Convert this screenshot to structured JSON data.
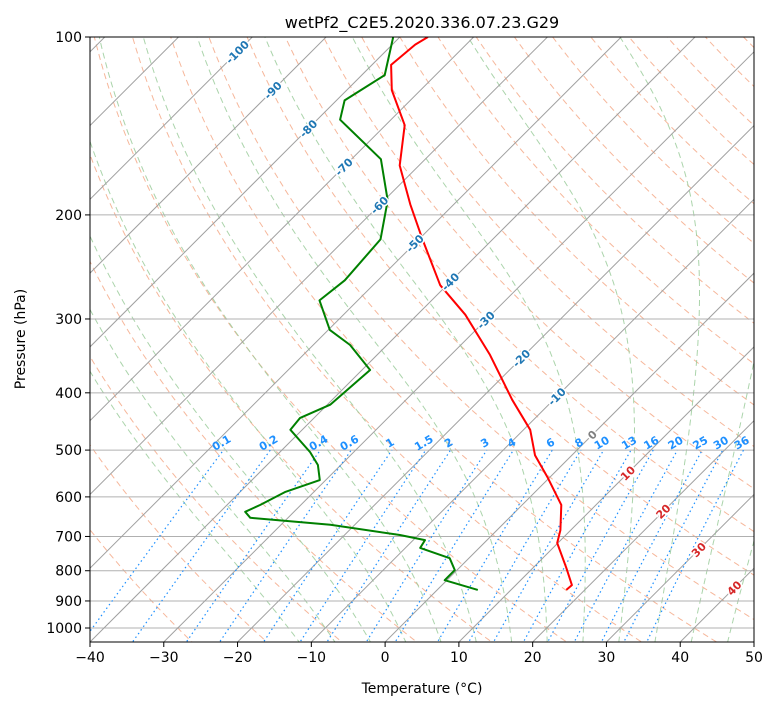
{
  "chart_data": {
    "type": "line",
    "subtype": "skew-t log-p",
    "title": "wetPf2_C2E5.2020.336.07.23.G29",
    "xlabel": "Temperature (°C)",
    "ylabel": "Pressure (hPa)",
    "xlim": [
      -40,
      50
    ],
    "ylim": [
      1050,
      100
    ],
    "xticks": [
      "−40",
      "−30",
      "−20",
      "−10",
      "0",
      "10",
      "20",
      "30",
      "40",
      "50"
    ],
    "xtick_values": [
      -40,
      -30,
      -20,
      -10,
      0,
      10,
      20,
      30,
      40,
      50
    ],
    "yticks": [
      "100",
      "200",
      "300",
      "400",
      "500",
      "600",
      "700",
      "800",
      "900",
      "1000"
    ],
    "ytick_values": [
      100,
      200,
      300,
      400,
      500,
      600,
      700,
      800,
      900,
      1000
    ],
    "grid": true,
    "series": [
      {
        "name": "Temperature",
        "color": "#ff0000",
        "p": [
          862,
          846,
          791,
          718,
          683,
          619,
          557,
          510,
          462,
          411,
          345,
          295,
          263,
          220,
          192,
          165,
          141,
          123,
          111.5,
          103,
          100
        ],
        "t": [
          17.5,
          17.6,
          14.5,
          9.9,
          8.6,
          5.3,
          -0.2,
          -5.0,
          -9.1,
          -15.6,
          -24.7,
          -33.5,
          -40.9,
          -49.5,
          -55.9,
          -62.6,
          -67.4,
          -73.9,
          -77.4,
          -76.9,
          -76.2
        ]
      },
      {
        "name": "Dewpoint",
        "color": "#008000",
        "p": [
          862,
          830,
          798,
          762,
          732,
          710,
          696,
          669,
          651,
          636,
          619,
          589,
          562,
          530,
          504,
          462,
          441,
          419,
          366,
          332,
          313,
          279,
          258,
          220,
          189,
          161,
          138,
          128,
          116,
          100
        ],
        "t": [
          5.5,
          -0.3,
          -0.3,
          -2.6,
          -8.0,
          -8.4,
          -12.5,
          -23.3,
          -35.1,
          -36.6,
          -35.5,
          -33.9,
          -30.8,
          -33.1,
          -35.9,
          -41.6,
          -41.9,
          -39.6,
          -38.9,
          -45.0,
          -49.8,
          -55.2,
          -54.5,
          -55.2,
          -59.5,
          -66.0,
          -76.9,
          -78.9,
          -76.9,
          -80.9
        ]
      }
    ],
    "isotherm_labels": [
      {
        "t": -100,
        "text": "-100",
        "color": "#1f77b4"
      },
      {
        "t": -90,
        "text": "-90",
        "color": "#1f77b4"
      },
      {
        "t": -80,
        "text": "-80",
        "color": "#1f77b4"
      },
      {
        "t": -70,
        "text": "-70",
        "color": "#1f77b4"
      },
      {
        "t": -60,
        "text": "-60",
        "color": "#1f77b4"
      },
      {
        "t": -50,
        "text": "-50",
        "color": "#1f77b4"
      },
      {
        "t": -40,
        "text": "-40",
        "color": "#1f77b4"
      },
      {
        "t": -30,
        "text": "-30",
        "color": "#1f77b4"
      },
      {
        "t": -20,
        "text": "-20",
        "color": "#1f77b4"
      },
      {
        "t": -10,
        "text": "-10",
        "color": "#1f77b4"
      },
      {
        "t": 0,
        "text": "0",
        "color": "#808080"
      },
      {
        "t": 10,
        "text": "10",
        "color": "#d62728"
      },
      {
        "t": 20,
        "text": "20",
        "color": "#d62728"
      },
      {
        "t": 30,
        "text": "30",
        "color": "#d62728"
      },
      {
        "t": 40,
        "text": "40",
        "color": "#d62728"
      }
    ],
    "mixing_ratio_labels": [
      "0.1",
      "0.2",
      "0.4",
      "0.6",
      "1",
      "1.5",
      "2",
      "3",
      "4",
      "6",
      "8",
      "10",
      "13",
      "16",
      "20",
      "25",
      "30",
      "36"
    ],
    "mixing_ratio_values": [
      0.1,
      0.2,
      0.4,
      0.6,
      1,
      1.5,
      2,
      3,
      4,
      6,
      8,
      10,
      13,
      16,
      20,
      25,
      30,
      36
    ],
    "mixing_ratio_label_pressure": 500,
    "colors": {
      "isotherm": "#a0a0a0",
      "dry_adiabat": "#f4a582",
      "moist_adiabat": "#9ccc9c",
      "mixing_ratio": "#1e90ff"
    }
  }
}
